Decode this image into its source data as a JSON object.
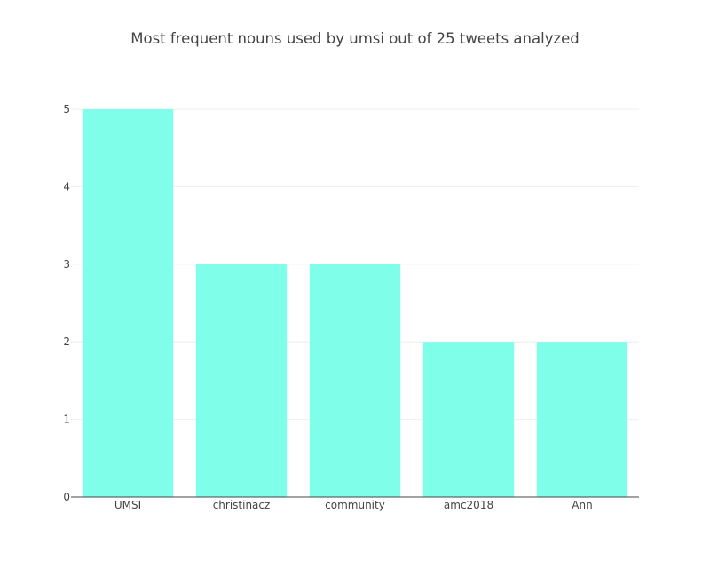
{
  "chart_data": {
    "type": "bar",
    "title": "Most frequent nouns used by umsi out of 25 tweets analyzed",
    "categories": [
      "UMSI",
      "christinacz",
      "community",
      "amc2018",
      "Ann"
    ],
    "values": [
      5,
      3,
      3,
      2,
      2
    ],
    "xlabel": "",
    "ylabel": "",
    "ylim": [
      0,
      5
    ],
    "yticks": [
      "0",
      "1",
      "2",
      "3",
      "4",
      "5"
    ],
    "grid": true,
    "bar_color": "#7fffe9"
  }
}
